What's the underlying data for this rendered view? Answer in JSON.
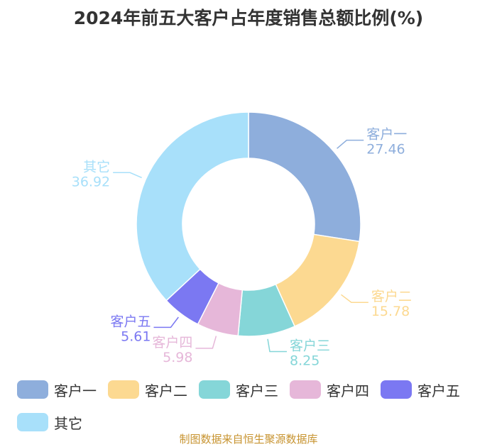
{
  "chart_data": {
    "type": "pie",
    "title": "2024年前五大客户占年度销售总额比例(%)",
    "categories": [
      "客户一",
      "客户二",
      "客户三",
      "客户四",
      "客户五",
      "其它"
    ],
    "values": [
      27.46,
      15.78,
      8.25,
      5.98,
      5.61,
      36.92
    ],
    "value_labels": [
      "27.46",
      "15.78",
      "8.25",
      "5.98",
      "5.61",
      "36.92"
    ],
    "colors": [
      "#8eaedc",
      "#fcd991",
      "#85d6d8",
      "#e6b7d9",
      "#7b78f2",
      "#a8e0fa"
    ],
    "donut": true,
    "legend_position": "bottom",
    "source": "制图数据来自恒生聚源数据库"
  }
}
